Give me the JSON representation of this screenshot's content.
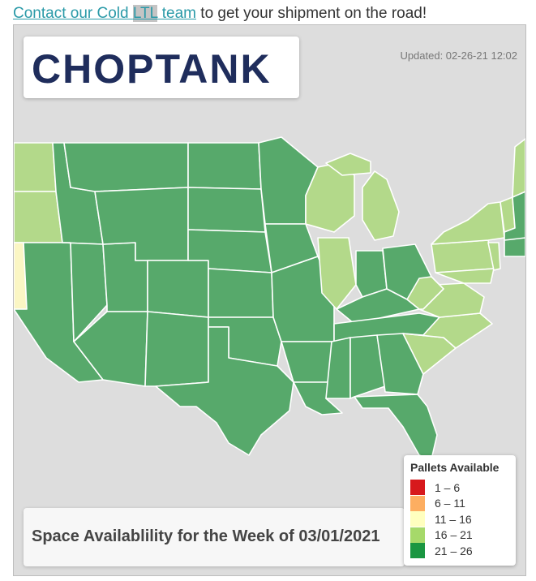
{
  "header": {
    "link_text": "Contact our Cold ",
    "link_highlight": "LTL",
    "link_text_after": " team",
    "rest_text": " to get your shipment on the road!"
  },
  "logo": {
    "text": "CHOPTANK",
    "brand_color": "#1f2d5c",
    "accent_color": "#d0312d"
  },
  "updated": "Updated: 02-26-21 12:02",
  "title": "Space Availablility for the Week of 03/01/2021",
  "legend": {
    "title": "Pallets Available",
    "items": [
      {
        "label": "1 – 6",
        "color": "#d7191c"
      },
      {
        "label": "6 – 11",
        "color": "#fdae61"
      },
      {
        "label": "11 – 16",
        "color": "#ffffbf"
      },
      {
        "label": "16 – 21",
        "color": "#a6d96a"
      },
      {
        "label": "21 – 26",
        "color": "#1a9641"
      }
    ]
  },
  "map": {
    "region_colors": {
      "high": "#57a96b",
      "mid": "#b3d98a",
      "low": "#fbf6c4"
    }
  }
}
